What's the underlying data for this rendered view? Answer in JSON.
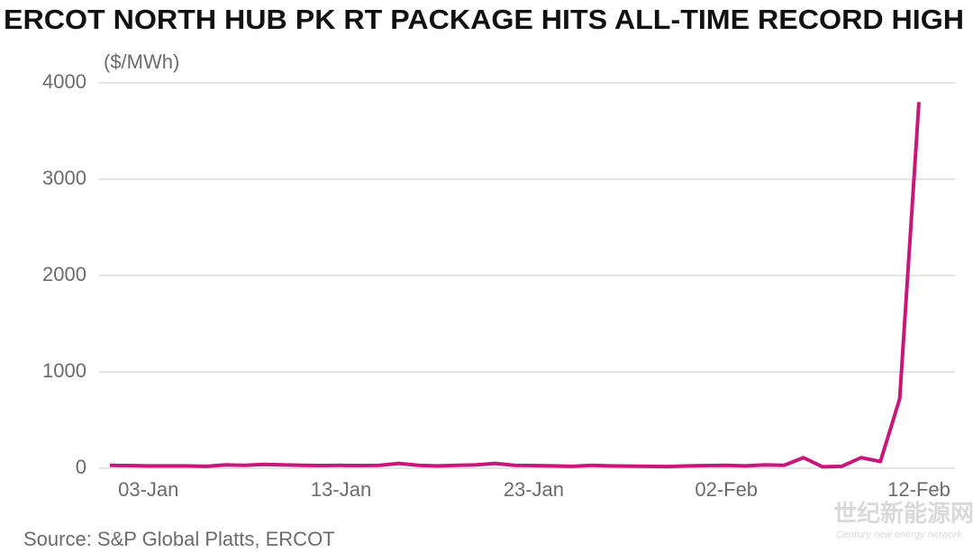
{
  "chart_data": {
    "type": "line",
    "title": "ERCOT NORTH HUB PK RT PACKAGE HITS ALL-TIME RECORD HIGH",
    "y_label": "($/MWh)",
    "source": "Source: S&P Global Platts, ERCOT",
    "watermark": "世纪新能源网",
    "watermark_sub": "Century new energy network",
    "categories": [
      null,
      null,
      "03-Jan",
      null,
      null,
      null,
      null,
      null,
      null,
      null,
      null,
      null,
      "13-Jan",
      null,
      null,
      null,
      null,
      null,
      null,
      null,
      null,
      null,
      "23-Jan",
      null,
      null,
      null,
      null,
      null,
      null,
      null,
      null,
      null,
      "02-Feb",
      null,
      null,
      null,
      null,
      null,
      null,
      null,
      null,
      null,
      "12-Feb"
    ],
    "series": [
      {
        "name": "ERCOT North Hub PK RT",
        "color": "#c8177a",
        "values": [
          30,
          28,
          25,
          25,
          25,
          20,
          35,
          30,
          40,
          35,
          30,
          28,
          30,
          28,
          30,
          50,
          30,
          25,
          30,
          35,
          50,
          30,
          28,
          25,
          20,
          30,
          25,
          22,
          20,
          18,
          25,
          28,
          30,
          25,
          35,
          30,
          110,
          15,
          20,
          110,
          70,
          720,
          3800
        ]
      }
    ],
    "ylim": [
      0,
      4000
    ],
    "yticks": [
      0,
      1000,
      2000,
      3000,
      4000
    ],
    "grid": true
  }
}
